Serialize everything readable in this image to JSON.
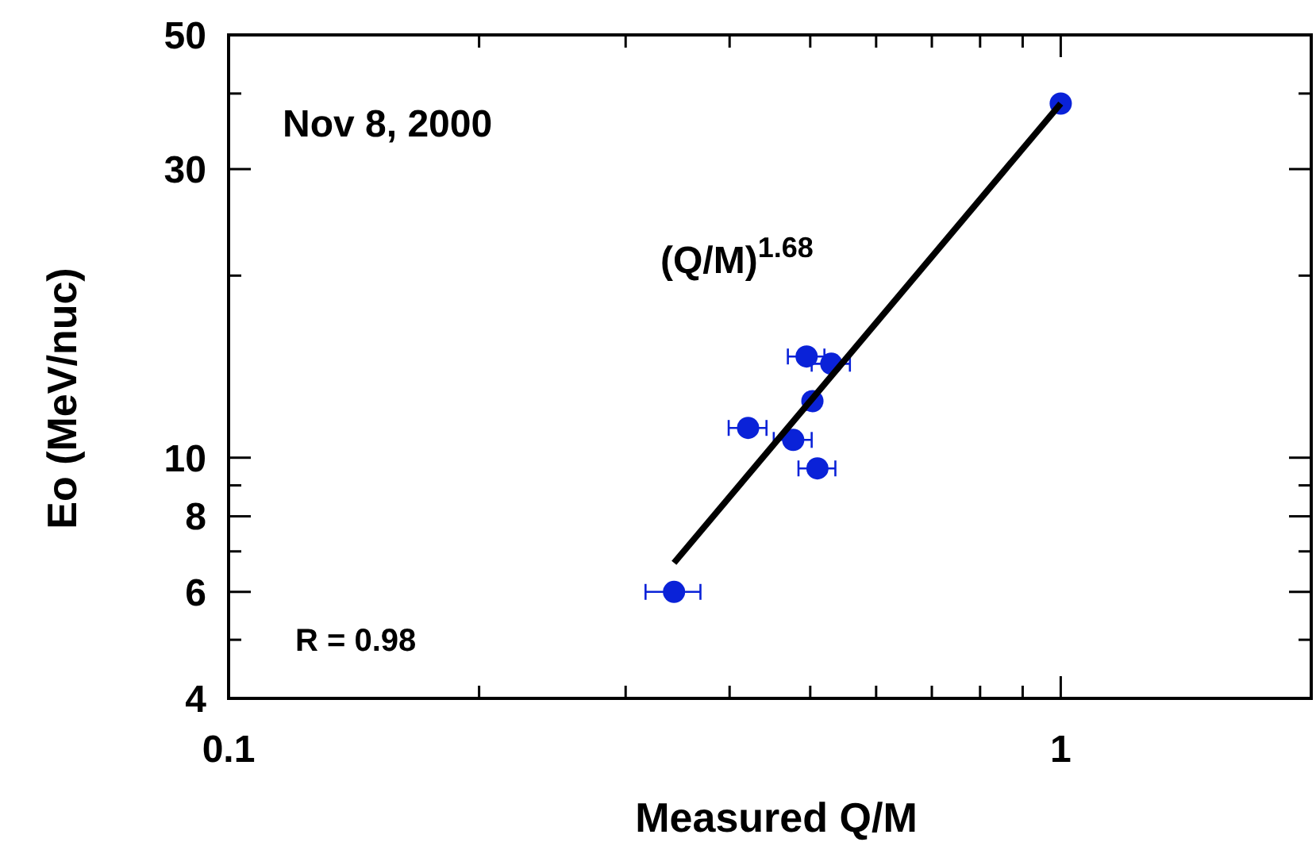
{
  "chart_data": {
    "type": "scatter",
    "xlabel": "Measured Q/M",
    "ylabel": "Eo (MeV/nuc)",
    "log": "xy",
    "grid": false,
    "marker": "circle",
    "xlim": [
      0.1,
      2
    ],
    "xticks": [
      0.1,
      {
        "value": 0.2,
        "label": null
      },
      {
        "value": 0.3,
        "label": null
      },
      {
        "value": 0.4,
        "label": null
      },
      {
        "value": 0.5,
        "label": null
      },
      {
        "value": 0.6,
        "label": null
      },
      {
        "value": 0.7,
        "label": null
      },
      {
        "value": 0.8,
        "label": null
      },
      {
        "value": 0.9,
        "label": null
      },
      1
    ],
    "ylim": [
      4,
      50
    ],
    "yticks": [
      4,
      {
        "value": 5,
        "label": null
      },
      6,
      {
        "value": 7,
        "label": null
      },
      8,
      {
        "value": 9,
        "label": null
      },
      10,
      {
        "value": 20,
        "label": null
      },
      30,
      {
        "value": 40,
        "label": null
      },
      50
    ],
    "series": [
      {
        "color": "#0a22d8",
        "x": [
          1.0,
          0.343,
          0.421,
          0.477,
          0.503,
          0.495,
          0.53,
          0.51
        ],
        "values": [
          38.5,
          6.0,
          11.2,
          10.7,
          12.4,
          14.7,
          14.3,
          9.6
        ],
        "xerrors": [
          null,
          0.026,
          0.022,
          0.025,
          null,
          0.025,
          0.028,
          0.026
        ]
      },
      {
        "type": "line",
        "marker": "none",
        "color": "#000000",
        "x": [
          0.343,
          1.0
        ],
        "values": [
          6.7,
          38.5
        ]
      }
    ],
    "annotations": [
      "Nov 8, 2000",
      "(Q/M)$^{1.68}$",
      "R = 0.98"
    ]
  }
}
